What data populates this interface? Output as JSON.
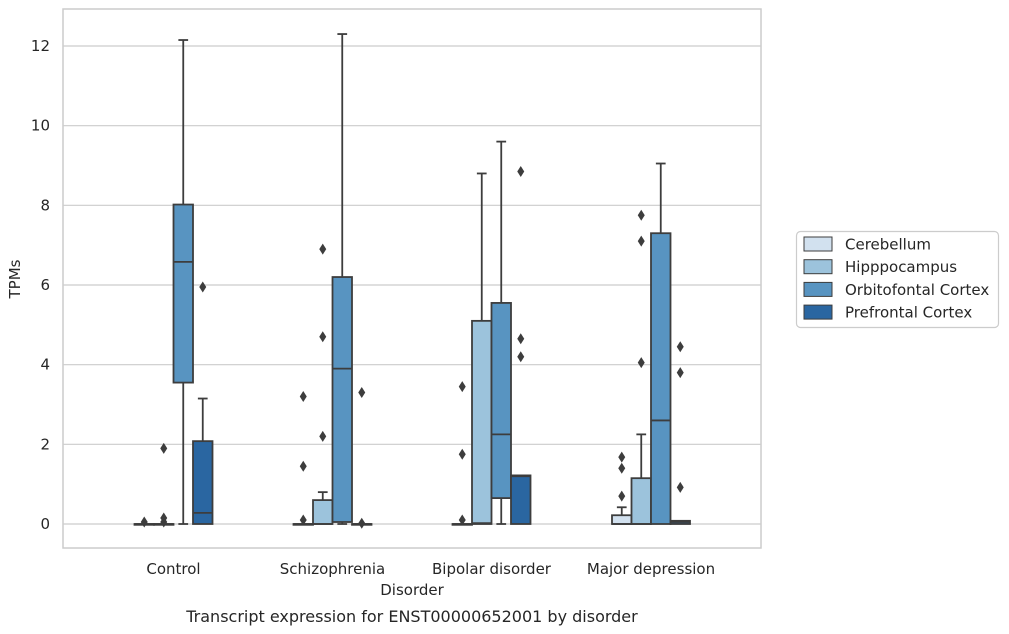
{
  "chart_data": {
    "type": "boxplot",
    "caption": "Transcript expression for ENST00000652001 by disorder",
    "xlabel": "Disorder",
    "ylabel": "TPMs",
    "ylim": [
      -0.6,
      12.9
    ],
    "yticks": [
      0,
      2,
      4,
      6,
      8,
      10,
      12
    ],
    "grid": "horizontal",
    "legend_position": "right",
    "categories": [
      "Control",
      "Schizophrenia",
      "Bipolar disorder",
      "Major depression"
    ],
    "colors": [
      "#d2e1ef",
      "#9cc3dc",
      "#5894c1",
      "#2a66a1"
    ],
    "series": [
      {
        "name": "Cerebellum",
        "boxes": [
          {
            "whislo": 0,
            "q1": 0,
            "med": 0,
            "q3": 0,
            "whishi": 0,
            "fliers": [
              0.05
            ]
          },
          {
            "whislo": 0,
            "q1": 0,
            "med": 0,
            "q3": 0,
            "whishi": 0,
            "fliers": [
              0.1,
              1.45,
              3.2
            ]
          },
          {
            "whislo": 0,
            "q1": 0,
            "med": 0,
            "q3": 0,
            "whishi": 0,
            "fliers": [
              0.1,
              1.75,
              3.45
            ]
          },
          {
            "whislo": 0,
            "q1": 0,
            "med": 0,
            "q3": 0.22,
            "whishi": 0.42,
            "fliers": [
              0.7,
              1.4,
              1.68
            ]
          }
        ]
      },
      {
        "name": "Hipppocampus",
        "boxes": [
          {
            "whislo": 0,
            "q1": 0,
            "med": 0,
            "q3": 0,
            "whishi": 0,
            "fliers": [
              0.05,
              0.15,
              1.9
            ]
          },
          {
            "whislo": 0,
            "q1": 0,
            "med": 0,
            "q3": 0.6,
            "whishi": 0.8,
            "fliers": [
              2.2,
              4.7,
              6.9
            ]
          },
          {
            "whislo": 0,
            "q1": 0,
            "med": 0.02,
            "q3": 5.1,
            "whishi": 8.8,
            "fliers": []
          },
          {
            "whislo": 0,
            "q1": 0,
            "med": 0,
            "q3": 1.15,
            "whishi": 2.25,
            "fliers": [
              4.05,
              7.1,
              7.75
            ]
          }
        ]
      },
      {
        "name": "Orbitofontal Cortex",
        "boxes": [
          {
            "whislo": 0,
            "q1": 3.55,
            "med": 6.58,
            "q3": 8.02,
            "whishi": 12.15,
            "fliers": []
          },
          {
            "whislo": 0,
            "q1": 0.05,
            "med": 3.9,
            "q3": 6.2,
            "whishi": 12.3,
            "fliers": []
          },
          {
            "whislo": 0,
            "q1": 0.65,
            "med": 2.25,
            "q3": 5.55,
            "whishi": 9.6,
            "fliers": []
          },
          {
            "whislo": 0,
            "q1": 0,
            "med": 2.6,
            "q3": 7.3,
            "whishi": 9.05,
            "fliers": []
          }
        ]
      },
      {
        "name": "Prefrontal Cortex",
        "boxes": [
          {
            "whislo": 0,
            "q1": 0,
            "med": 0.28,
            "q3": 2.08,
            "whishi": 3.15,
            "fliers": [
              5.95
            ]
          },
          {
            "whislo": 0,
            "q1": 0,
            "med": 0,
            "q3": 0,
            "whishi": 0,
            "fliers": [
              0.02,
              3.3
            ]
          },
          {
            "whislo": 0,
            "q1": 0,
            "med": 1.2,
            "q3": 1.22,
            "whishi": 1.22,
            "fliers": [
              4.2,
              4.65,
              8.85
            ]
          },
          {
            "whislo": 0,
            "q1": 0,
            "med": 0.05,
            "q3": 0.08,
            "whishi": 0.08,
            "fliers": [
              0.92,
              3.8,
              4.45
            ]
          }
        ]
      }
    ]
  }
}
